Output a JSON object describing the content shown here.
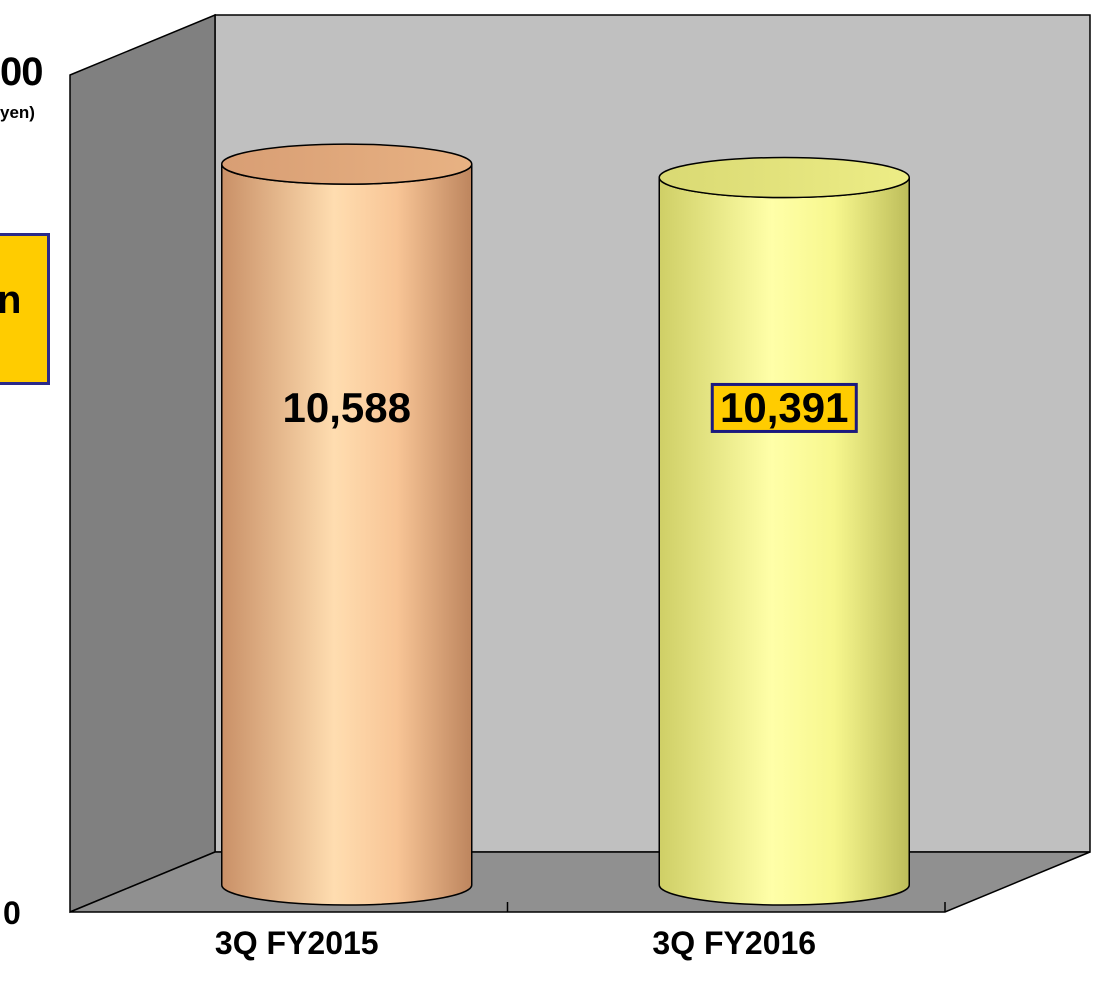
{
  "chart_data": {
    "type": "bar",
    "style": "3d-cylinder",
    "categories": [
      "3Q FY2015",
      "3Q FY2016"
    ],
    "values": [
      10588,
      10391
    ],
    "value_labels": [
      "10,588",
      "10,391"
    ],
    "y_tick_top_label": "00",
    "y_tick_zero_label": "0",
    "y_unit_label": "yen)",
    "ylim": [
      0,
      12000
    ],
    "grid": false,
    "series_colors": [
      "#F4B98A",
      "#F2F28A"
    ],
    "highlight_label_fill": "#FFCC00",
    "highlight_label_border": "#1A1A80"
  },
  "callout": {
    "text": "n",
    "fill": "#FFCC00",
    "border": "#2A2A8A"
  }
}
